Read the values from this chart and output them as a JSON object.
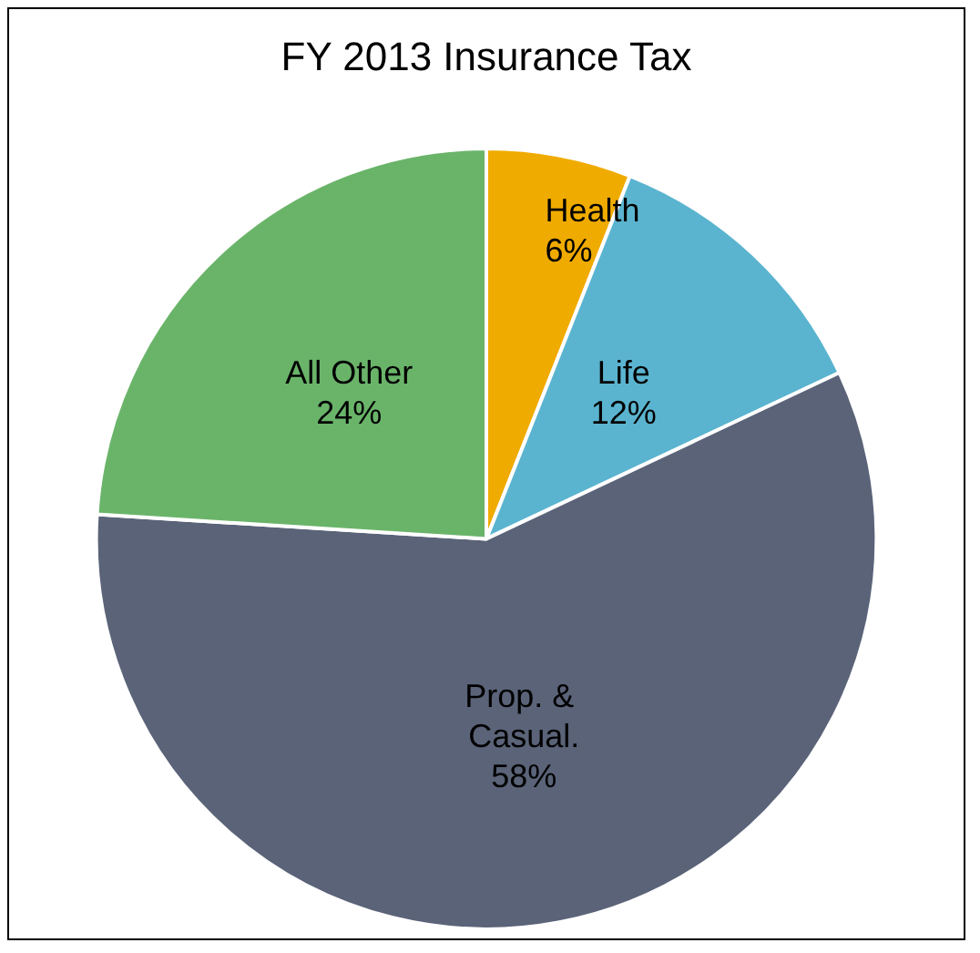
{
  "chart_data": {
    "type": "pie",
    "title": "FY 2013 Insurance Tax",
    "categories": [
      "Health",
      "Life",
      "Prop. & Casual.",
      "All Other"
    ],
    "values": [
      6,
      12,
      58,
      24
    ],
    "colors": [
      "#f0ab00",
      "#5bb4cf",
      "#5a6378",
      "#6ab46a"
    ],
    "value_labels": [
      "6%",
      "12%",
      "58%",
      "24%"
    ],
    "data_labels": true,
    "legend": false
  }
}
